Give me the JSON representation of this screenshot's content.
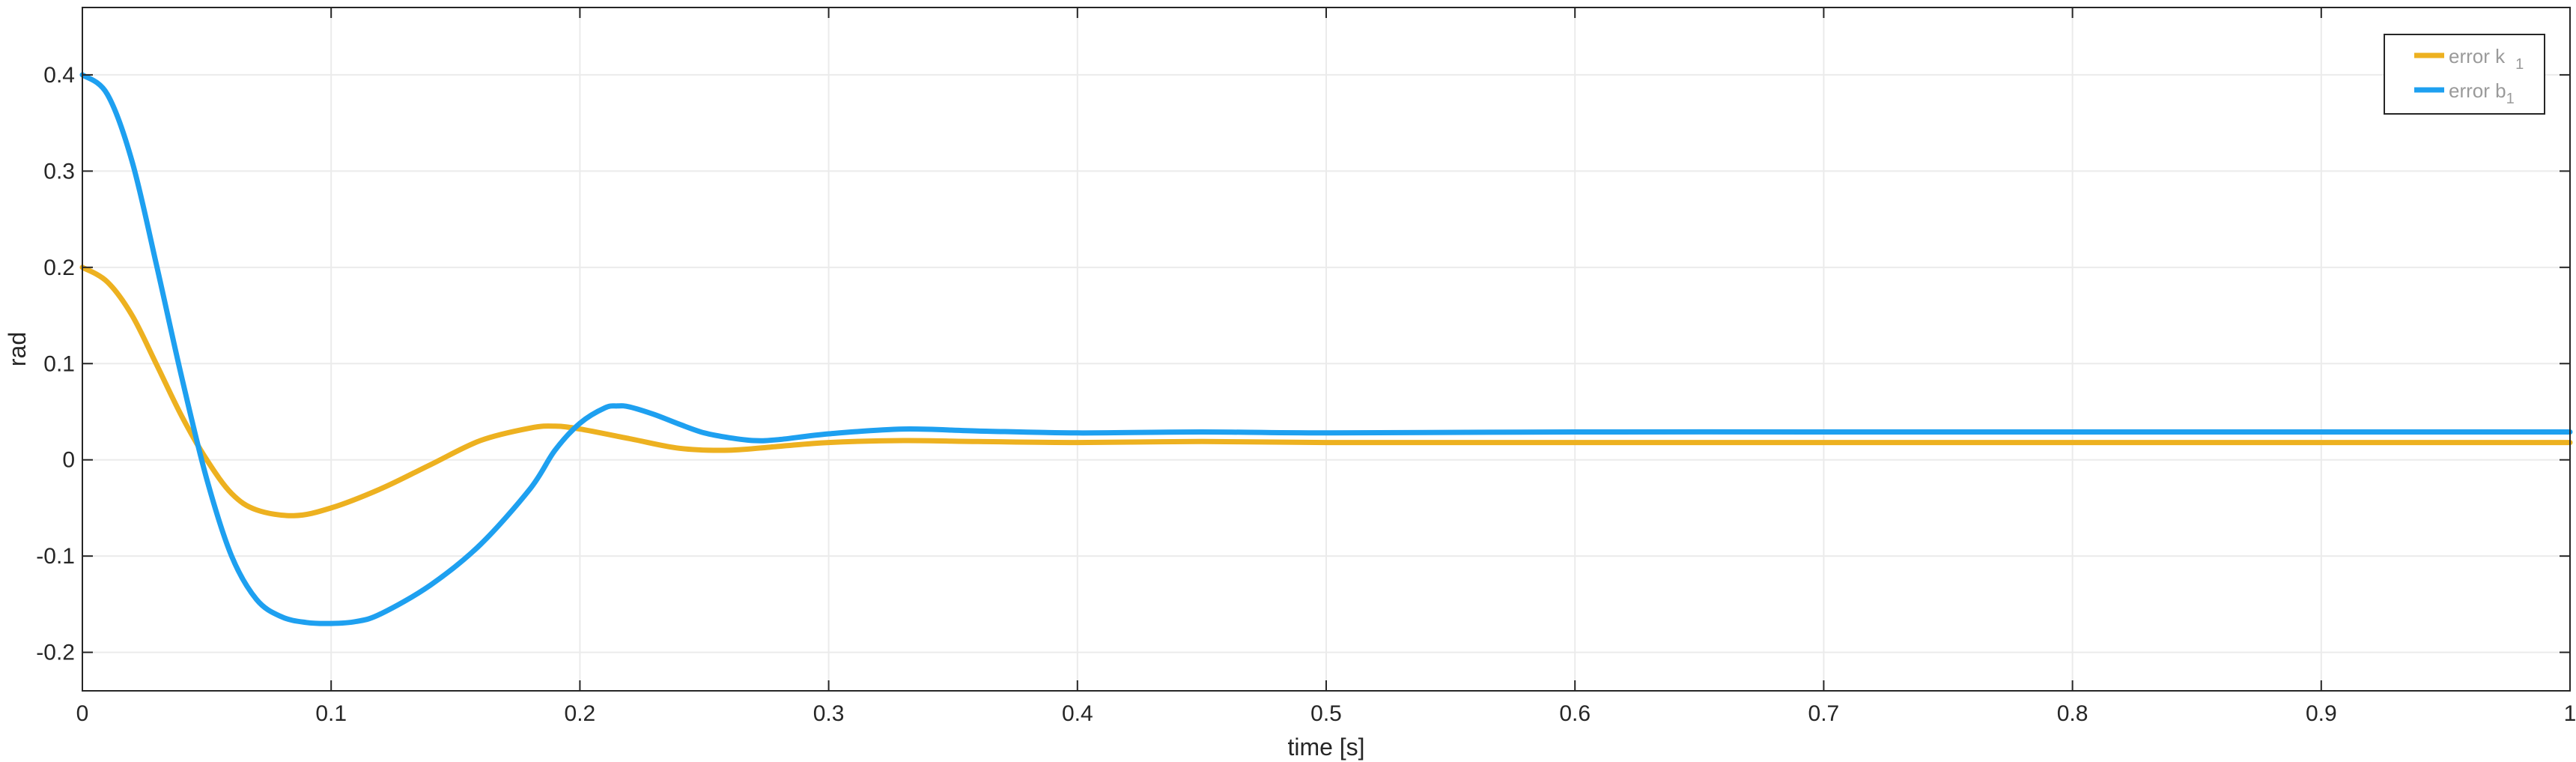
{
  "chart_data": {
    "type": "line",
    "title": "",
    "xlabel": "time [s]",
    "ylabel": "rad",
    "xlim": [
      0,
      1
    ],
    "ylim": [
      -0.24,
      0.47
    ],
    "grid": true,
    "legend_position": "top-right",
    "x_ticks": [
      "0",
      "0.1",
      "0.2",
      "0.3",
      "0.4",
      "0.5",
      "0.6",
      "0.7",
      "0.8",
      "0.9",
      "1"
    ],
    "y_ticks": [
      "-0.2",
      "-0.1",
      "0",
      "0.1",
      "0.2",
      "0.3",
      "0.4"
    ],
    "x_tick_values": [
      0,
      0.1,
      0.2,
      0.3,
      0.4,
      0.5,
      0.6,
      0.7,
      0.8,
      0.9,
      1
    ],
    "y_tick_values": [
      -0.2,
      -0.1,
      0,
      0.1,
      0.2,
      0.3,
      0.4
    ],
    "series": [
      {
        "name": "error k",
        "name_subscript": "1",
        "color": "#EDB120",
        "x": [
          0,
          0.01,
          0.02,
          0.03,
          0.04,
          0.05,
          0.06,
          0.07,
          0.085,
          0.1,
          0.12,
          0.14,
          0.16,
          0.18,
          0.19,
          0.2,
          0.22,
          0.24,
          0.26,
          0.28,
          0.3,
          0.33,
          0.36,
          0.4,
          0.45,
          0.5,
          0.6,
          0.7,
          0.8,
          0.9,
          1.0
        ],
        "y": [
          0.2,
          0.185,
          0.15,
          0.098,
          0.045,
          0.0,
          -0.035,
          -0.052,
          -0.058,
          -0.05,
          -0.03,
          -0.005,
          0.02,
          0.033,
          0.035,
          0.032,
          0.022,
          0.012,
          0.01,
          0.014,
          0.018,
          0.02,
          0.019,
          0.018,
          0.019,
          0.018,
          0.018,
          0.018,
          0.018,
          0.018,
          0.018
        ]
      },
      {
        "name": "error b",
        "name_subscript": "1",
        "color": "#1EA0F0",
        "x": [
          0,
          0.01,
          0.02,
          0.03,
          0.04,
          0.05,
          0.06,
          0.07,
          0.08,
          0.09,
          0.1,
          0.11,
          0.12,
          0.14,
          0.16,
          0.18,
          0.19,
          0.2,
          0.21,
          0.215,
          0.22,
          0.23,
          0.24,
          0.25,
          0.26,
          0.27,
          0.28,
          0.3,
          0.33,
          0.36,
          0.4,
          0.45,
          0.5,
          0.6,
          0.7,
          0.8,
          0.9,
          1.0
        ],
        "y": [
          0.4,
          0.38,
          0.31,
          0.2,
          0.085,
          -0.02,
          -0.1,
          -0.145,
          -0.163,
          -0.169,
          -0.17,
          -0.168,
          -0.16,
          -0.13,
          -0.088,
          -0.03,
          0.01,
          0.038,
          0.054,
          0.056,
          0.055,
          0.047,
          0.037,
          0.028,
          0.023,
          0.02,
          0.021,
          0.027,
          0.032,
          0.03,
          0.028,
          0.029,
          0.028,
          0.029,
          0.029,
          0.029,
          0.029,
          0.029
        ]
      }
    ]
  }
}
